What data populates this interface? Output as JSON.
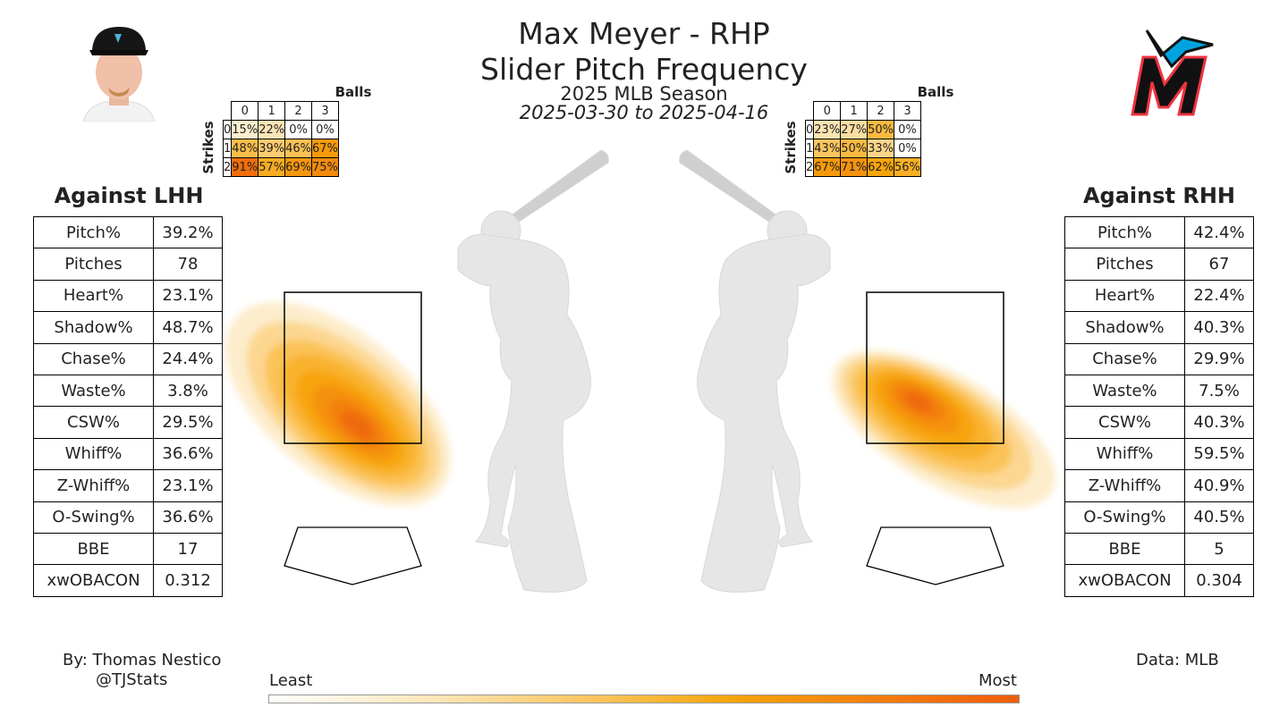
{
  "title": "Max Meyer - RHP",
  "subtitle": "Slider Pitch Frequency",
  "season": "2025 MLB Season",
  "date_range": "2025-03-30 to 2025-04-16",
  "colors": {
    "scale": [
      "#ffffff",
      "#fde9bf",
      "#fbc257",
      "#f7a40b",
      "#f3800f",
      "#ef5d0a"
    ],
    "silhouette": "#e6e6e6",
    "marlins_black": "#111111",
    "marlins_blue": "#00a3e0",
    "marlins_red": "#ef3340"
  },
  "icons": {
    "headshot": "player-headshot-icon",
    "logo": "marlins-logo-icon"
  },
  "lhh": {
    "heading": "Against LHH",
    "count_table": {
      "balls_label": "Balls",
      "strikes_label": "Strikes",
      "ball_headers": [
        "0",
        "1",
        "2",
        "3"
      ],
      "strike_headers": [
        "0",
        "1",
        "2"
      ],
      "cells": [
        [
          "15%",
          "22%",
          "0%",
          "0%"
        ],
        [
          "48%",
          "39%",
          "46%",
          "67%"
        ],
        [
          "91%",
          "57%",
          "69%",
          "75%"
        ]
      ]
    },
    "stats": [
      {
        "label": "Pitch%",
        "value": "39.2%"
      },
      {
        "label": "Pitches",
        "value": "78"
      },
      {
        "label": "Heart%",
        "value": "23.1%"
      },
      {
        "label": "Shadow%",
        "value": "48.7%"
      },
      {
        "label": "Chase%",
        "value": "24.4%"
      },
      {
        "label": "Waste%",
        "value": "3.8%"
      },
      {
        "label": "CSW%",
        "value": "29.5%"
      },
      {
        "label": "Whiff%",
        "value": "36.6%"
      },
      {
        "label": "Z-Whiff%",
        "value": "23.1%"
      },
      {
        "label": "O-Swing%",
        "value": "36.6%"
      },
      {
        "label": "BBE",
        "value": "17"
      },
      {
        "label": "xwOBACON",
        "value": "0.312"
      }
    ]
  },
  "rhh": {
    "heading": "Against RHH",
    "count_table": {
      "balls_label": "Balls",
      "strikes_label": "Strikes",
      "ball_headers": [
        "0",
        "1",
        "2",
        "3"
      ],
      "strike_headers": [
        "0",
        "1",
        "2"
      ],
      "cells": [
        [
          "23%",
          "27%",
          "50%",
          "0%"
        ],
        [
          "43%",
          "50%",
          "33%",
          "0%"
        ],
        [
          "67%",
          "71%",
          "62%",
          "56%"
        ]
      ]
    },
    "stats": [
      {
        "label": "Pitch%",
        "value": "42.4%"
      },
      {
        "label": "Pitches",
        "value": "67"
      },
      {
        "label": "Heart%",
        "value": "22.4%"
      },
      {
        "label": "Shadow%",
        "value": "40.3%"
      },
      {
        "label": "Chase%",
        "value": "29.9%"
      },
      {
        "label": "Waste%",
        "value": "7.5%"
      },
      {
        "label": "CSW%",
        "value": "40.3%"
      },
      {
        "label": "Whiff%",
        "value": "59.5%"
      },
      {
        "label": "Z-Whiff%",
        "value": "40.9%"
      },
      {
        "label": "O-Swing%",
        "value": "40.5%"
      },
      {
        "label": "BBE",
        "value": "5"
      },
      {
        "label": "xwOBACON",
        "value": "0.304"
      }
    ]
  },
  "chart_data": {
    "type": "heatmap",
    "colorbar": {
      "low_label": "Least",
      "high_label": "Most"
    },
    "count_tables": [
      {
        "side": "LHH",
        "rows": "Strikes",
        "cols": "Balls",
        "values": [
          [
            15,
            22,
            0,
            0
          ],
          [
            48,
            39,
            46,
            67
          ],
          [
            91,
            57,
            69,
            75
          ]
        ]
      },
      {
        "side": "RHH",
        "rows": "Strikes",
        "cols": "Balls",
        "values": [
          [
            23,
            27,
            50,
            0
          ],
          [
            43,
            50,
            33,
            0
          ],
          [
            67,
            71,
            62,
            56
          ]
        ]
      }
    ]
  },
  "footer": {
    "author": "By: Thomas Nestico",
    "handle": "@TJStats",
    "source": "Data: MLB"
  }
}
